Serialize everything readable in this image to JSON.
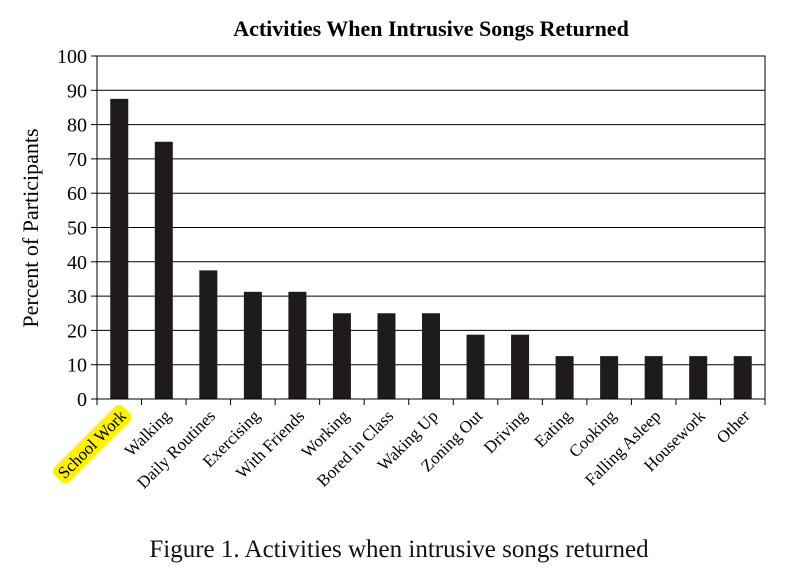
{
  "chart_data": {
    "type": "bar",
    "title": "Activities When Intrusive Songs Returned",
    "xlabel": "",
    "ylabel": "Percent of Participants",
    "ylim": [
      0,
      100
    ],
    "yticks": [
      0,
      10,
      20,
      30,
      40,
      50,
      60,
      70,
      80,
      90,
      100
    ],
    "grid": true,
    "categories": [
      "School Work",
      "Walking",
      "Daily Routines",
      "Exercising",
      "With Friends",
      "Working",
      "Bored in Class",
      "Waking Up",
      "Zoning Out",
      "Driving",
      "Eating",
      "Cooking",
      "Falling Asleep",
      "Housework",
      "Other"
    ],
    "values": [
      87.5,
      75,
      37.5,
      31.25,
      31.25,
      25,
      25,
      25,
      18.75,
      18.75,
      12.5,
      12.5,
      12.5,
      12.5,
      12.5
    ],
    "highlighted_category": "School Work",
    "colors": {
      "bar": "#1f1a1b",
      "highlight": "#fff200",
      "grid": "#000000"
    }
  },
  "caption": "Figure 1.  Activities when intrusive songs returned"
}
